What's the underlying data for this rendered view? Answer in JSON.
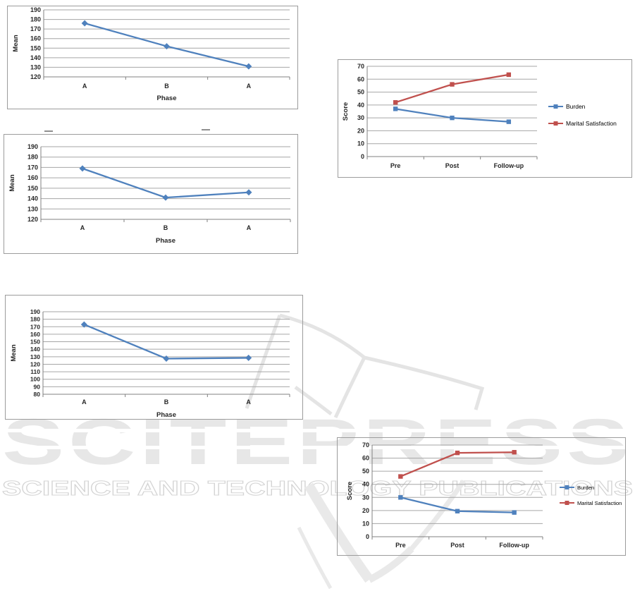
{
  "watermark": {
    "title": "SCITEPRESS",
    "subtitle": "SCIENCE AND TECHNOLOGY PUBLICATIONS",
    "title_color": "#e7e7e7",
    "subtitle_stroke_color": "#d4d4d4",
    "logo_color": "#e9e9e9"
  },
  "colors": {
    "blue": "#4F81BD",
    "red": "#C0504D",
    "gridline": "#a6a6a6",
    "axis": "#808080",
    "text": "#262626"
  },
  "chart_data": [
    {
      "id": "chart1",
      "type": "line",
      "title": "",
      "xlabel": "Phase",
      "ylabel": "Mean",
      "categories": [
        "A",
        "B",
        "A"
      ],
      "series": [
        {
          "name": "Mean",
          "color_key": "blue",
          "marker": "diamond",
          "values": [
            176,
            152,
            131
          ]
        }
      ],
      "ylim": [
        120,
        190
      ],
      "ytick_step": 10,
      "grid": true,
      "legend": false,
      "legend_position": null
    },
    {
      "id": "chart2",
      "type": "line",
      "title": "",
      "xlabel": "",
      "ylabel": "Score",
      "categories": [
        "Pre",
        "Post",
        "Follow-up"
      ],
      "series": [
        {
          "name": "Burden",
          "color_key": "blue",
          "marker": "square",
          "values": [
            37,
            30,
            27
          ]
        },
        {
          "name": "Marital Satisfaction",
          "color_key": "red",
          "marker": "square",
          "values": [
            42,
            56,
            63.5
          ]
        }
      ],
      "ylim": [
        0,
        70
      ],
      "ytick_step": 10,
      "grid": true,
      "legend": true,
      "legend_position": "right"
    },
    {
      "id": "chart3",
      "type": "line",
      "title": "",
      "xlabel": "Phase",
      "ylabel": "Mean",
      "categories": [
        "A",
        "B",
        "A"
      ],
      "series": [
        {
          "name": "Mean",
          "color_key": "blue",
          "marker": "diamond",
          "values": [
            169,
            141,
            146
          ]
        }
      ],
      "ylim": [
        120,
        190
      ],
      "ytick_step": 10,
      "grid": true,
      "legend": false,
      "legend_position": null
    },
    {
      "id": "chart4",
      "type": "line",
      "title": "",
      "xlabel": "Phase",
      "ylabel": "Mean",
      "categories": [
        "A",
        "B",
        "A"
      ],
      "series": [
        {
          "name": "Mean",
          "color_key": "blue",
          "marker": "diamond",
          "values": [
            173,
            127.5,
            128.5
          ]
        }
      ],
      "ylim": [
        80,
        190
      ],
      "ytick_step": 10,
      "grid": true,
      "legend": false,
      "legend_position": null
    },
    {
      "id": "chart5",
      "type": "line",
      "title": "",
      "xlabel": "",
      "ylabel": "Score",
      "categories": [
        "Pre",
        "Post",
        "Follow-up"
      ],
      "series": [
        {
          "name": "Burden",
          "color_key": "blue",
          "marker": "square",
          "values": [
            30,
            19.5,
            18.5
          ]
        },
        {
          "name": "Marital Satisfaction",
          "color_key": "red",
          "marker": "square",
          "values": [
            46,
            64,
            64.5
          ]
        }
      ],
      "ylim": [
        0,
        70
      ],
      "ytick_step": 10,
      "grid": true,
      "legend": true,
      "legend_position": "right"
    }
  ]
}
